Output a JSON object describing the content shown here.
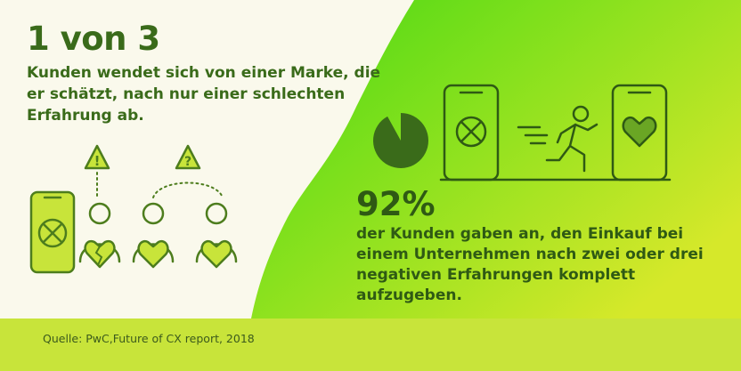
{
  "headline": "1 von 3",
  "left_text": "Kunden wendet sich von einer Marke, die er schätzt, nach nur einer schlechten Erfahrung ab.",
  "stat": "92%",
  "right_text": "der Kunden gaben an, den Einkauf bei einem Unternehmen nach zwei oder drei negativen Erfahrungen komplett aufzugeben.",
  "source": "Quelle: PwC,Future of CX report, 2018",
  "pie_fraction": 0.92,
  "icons": {
    "warning_exclamation": "!",
    "warning_question": "?"
  },
  "colors": {
    "cream": "#faf9ec",
    "green": "#3fcf10",
    "lime": "#c8e43a",
    "dark_green": "#3a6b1a",
    "icon_fill": "#b8e03a"
  }
}
